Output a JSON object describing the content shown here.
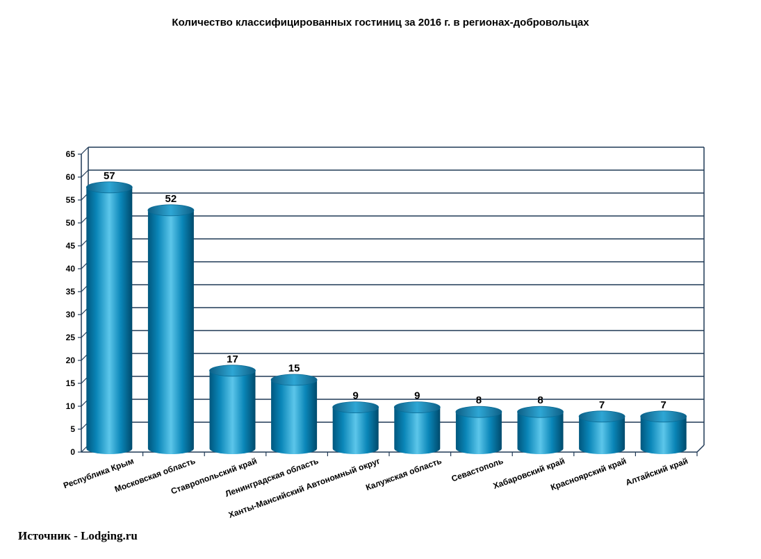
{
  "chart_data": {
    "type": "bar",
    "title": "Количество классифицированных гостиниц за 2016 г. в регионах-добровольцах",
    "xlabel": "",
    "ylabel": "",
    "categories": [
      "Республика Крым",
      "Московская область",
      "Ставропольский край",
      "Ленинградская область",
      "Ханты-Мансийский Автономный округ",
      "Калужская область",
      "Севастополь",
      "Хабаровский край",
      "Красноярский край",
      "Алтайский край"
    ],
    "values": [
      57,
      52,
      17,
      15,
      9,
      9,
      8,
      8,
      7,
      7
    ],
    "ylim": [
      0,
      65
    ],
    "yticks": [
      0,
      5,
      10,
      15,
      20,
      25,
      30,
      35,
      40,
      45,
      50,
      55,
      60,
      65
    ],
    "grid": true,
    "bar_style": "3d-cylinder",
    "colors": {
      "bar_dark": "#00577e",
      "bar_mid": "#0a86b8",
      "bar_light": "#5cc6ea",
      "grid": "#1f3855"
    }
  },
  "footer": {
    "source": "Источник - Lodging.ru"
  }
}
